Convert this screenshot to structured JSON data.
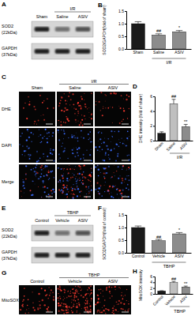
{
  "chart_data": [
    {
      "type": "bar",
      "title": "B",
      "ylabel": "SOD2/GAPDH(fold of sham)",
      "categories": [
        "Sham",
        "Saline",
        "ASIV"
      ],
      "values": [
        1.0,
        0.55,
        0.68
      ],
      "errors": [
        0.08,
        0.05,
        0.05
      ],
      "colors": [
        "#1a1a1a",
        "#8c8c8c",
        "#8c8c8c"
      ],
      "ylim": [
        0,
        1.5
      ],
      "yticks": [
        {
          "value": 0,
          "label": "0.0"
        },
        {
          "value": 0.5,
          "label": "0.5"
        },
        {
          "value": 1,
          "label": "1.0"
        },
        {
          "value": 1.5,
          "label": "1.5"
        }
      ],
      "annotations": [
        {
          "category": "Saline",
          "text": "##"
        },
        {
          "category": "ASIV",
          "text": "*"
        }
      ],
      "group": {
        "text": "I/R",
        "categories": [
          "Saline",
          "ASIV"
        ]
      }
    },
    {
      "type": "bar",
      "title": "D",
      "ylabel": "DHE intensity (fold of sham)",
      "categories": [
        "Sham",
        "Saline",
        "ASIV"
      ],
      "values": [
        1.0,
        5.0,
        1.9
      ],
      "errors": [
        0.2,
        0.6,
        0.3
      ],
      "colors": [
        "#1a1a1a",
        "#bfbfbf",
        "#8c8c8c"
      ],
      "ylim": [
        0,
        6
      ],
      "yticks": [
        0,
        2,
        4,
        6
      ],
      "annotations": [
        {
          "category": "Saline",
          "text": "##"
        },
        {
          "category": "ASIV",
          "text": "**"
        }
      ],
      "group": {
        "text": "I/R",
        "categories": [
          "Saline",
          "ASIV"
        ]
      }
    },
    {
      "type": "bar",
      "title": "F",
      "ylabel": "SOD2/GAPDH(fold of control)",
      "categories": [
        "Control",
        "Vehicle",
        "ASIV"
      ],
      "values": [
        1.0,
        0.48,
        0.75
      ],
      "errors": [
        0.06,
        0.05,
        0.05
      ],
      "colors": [
        "#1a1a1a",
        "#8c8c8c",
        "#8c8c8c"
      ],
      "ylim": [
        0,
        1.5
      ],
      "yticks": [
        {
          "value": 0,
          "label": "0.0"
        },
        {
          "value": 0.5,
          "label": "0.5"
        },
        {
          "value": 1,
          "label": "1.0"
        },
        {
          "value": 1.5,
          "label": "1.5"
        }
      ],
      "annotations": [
        {
          "category": "Vehicle",
          "text": "##"
        },
        {
          "category": "ASIV",
          "text": "*"
        }
      ],
      "group": {
        "text": "TBHP",
        "categories": [
          "Vehicle",
          "ASIV"
        ]
      }
    },
    {
      "type": "bar",
      "title": "H",
      "ylabel": "MitoSOX intensity",
      "categories": [
        "Control",
        "Vehicle",
        "ASIV"
      ],
      "values": [
        1.0,
        3.9,
        2.4
      ],
      "errors": [
        0.1,
        0.4,
        0.3
      ],
      "colors": [
        "#1a1a1a",
        "#bfbfbf",
        "#8c8c8c"
      ],
      "ylim": [
        0,
        6
      ],
      "yticks": [
        0,
        2,
        4,
        6
      ],
      "annotations": [
        {
          "category": "Vehicle",
          "text": "##"
        },
        {
          "category": "ASIV",
          "text": "**"
        }
      ],
      "group": {
        "text": "TBHP",
        "categories": [
          "Vehicle",
          "ASIV"
        ]
      }
    }
  ],
  "blots": [
    {
      "title": "A",
      "lanes": [
        "Sham",
        "Saline",
        "ASIV"
      ],
      "group": {
        "text": "I/R",
        "lanes": [
          "Saline",
          "ASIV"
        ]
      },
      "rows": [
        {
          "protein": "SOD2",
          "size": "(22kDa)"
        },
        {
          "protein": "GAPDH",
          "size": "(37kDa)"
        }
      ]
    },
    {
      "title": "E",
      "lanes": [
        "Control",
        "Vehicle",
        "ASIV"
      ],
      "group": {
        "text": "TBHP",
        "lanes": [
          "Vehicle",
          "ASIV"
        ]
      },
      "rows": [
        {
          "protein": "SOD2",
          "size": "(22kDa)"
        },
        {
          "protein": "GAPDH",
          "size": "(37kDa)"
        }
      ]
    }
  ],
  "images": [
    {
      "title": "C",
      "columns": [
        "Sham",
        "Saline",
        "ASIV"
      ],
      "group": {
        "text": "I/R",
        "columns": [
          "Saline",
          "ASIV"
        ]
      },
      "rows": [
        "DHE",
        "DAPI",
        "Merge"
      ]
    },
    {
      "title": "G",
      "columns": [
        "Control",
        "Vehicle",
        "ASIV"
      ],
      "group": {
        "text": "TBHP",
        "columns": [
          "Vehicle",
          "ASIV"
        ]
      },
      "rows": [
        "MitoSOX"
      ]
    }
  ]
}
